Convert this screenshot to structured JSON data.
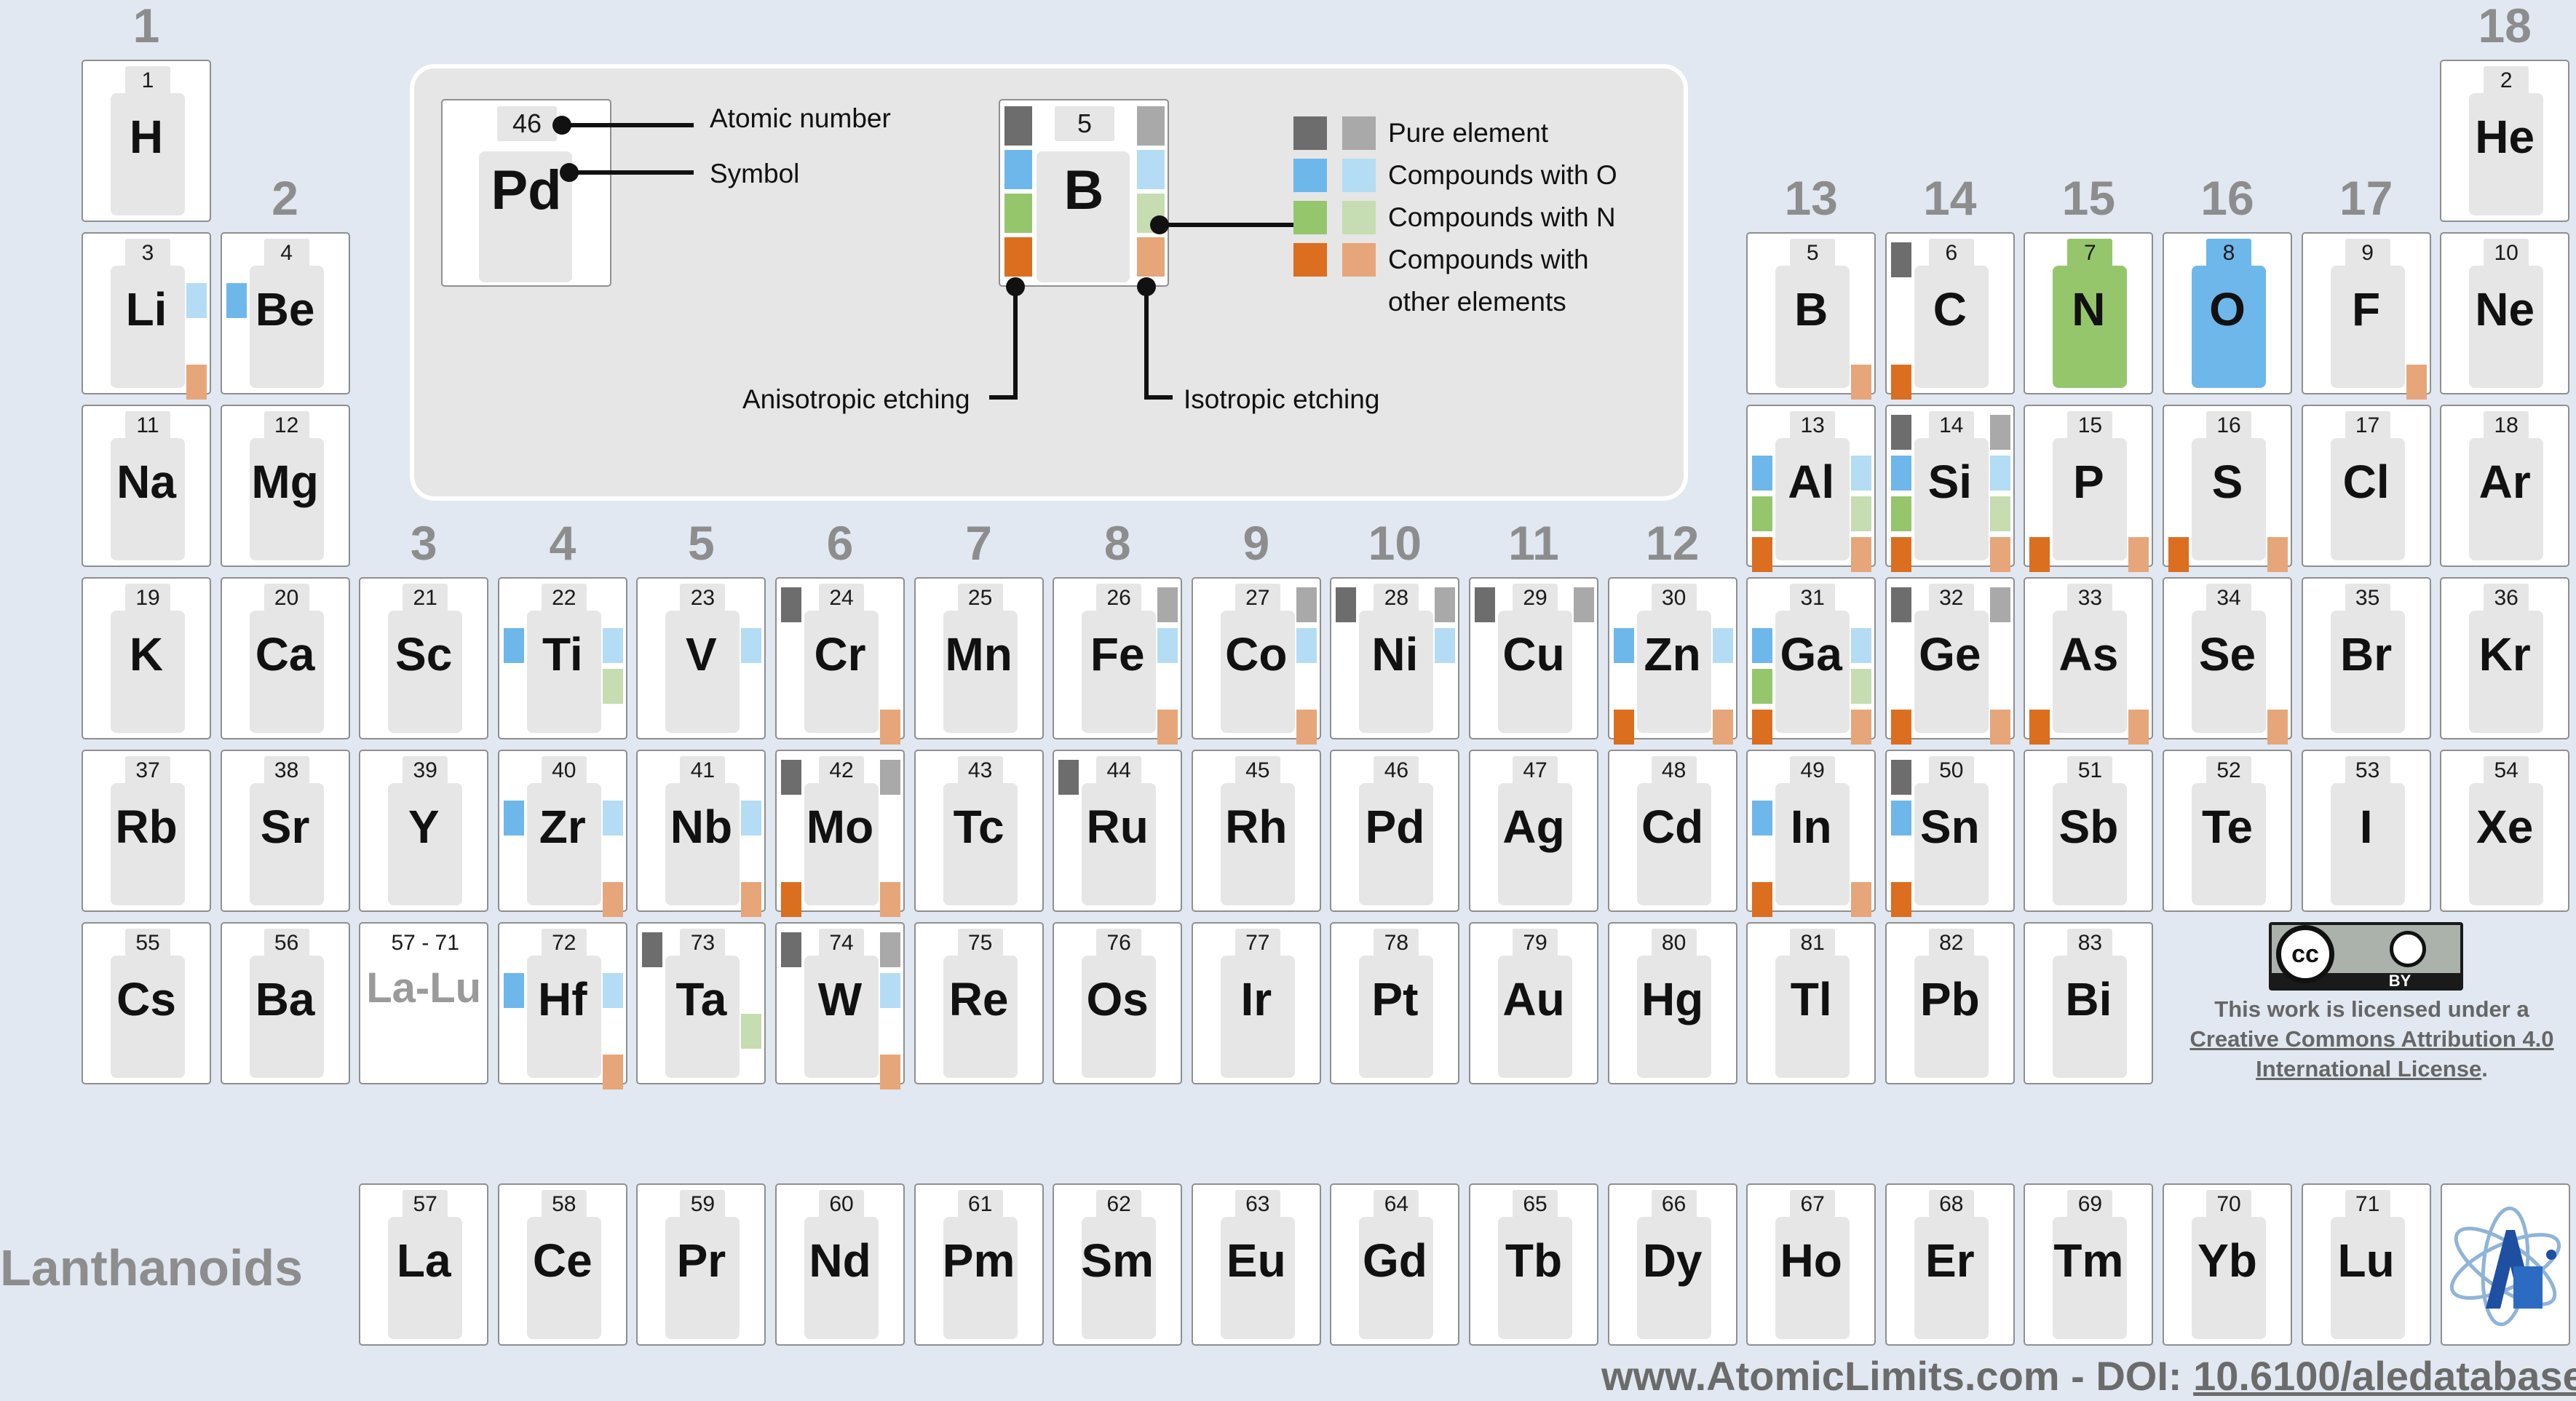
{
  "title": "",
  "colors": {
    "pure_dark": "#6d6d6d",
    "pure_light": "#a9a9a9",
    "o_dark": "#6eb7eb",
    "o_light": "#b4dcf4",
    "n_dark": "#96c66c",
    "n_light": "#c5ddb1",
    "other_dark": "#db6e1f",
    "other_light": "#e6a67a",
    "background": "#e1e8f1"
  },
  "group_labels": [
    {
      "label": "1",
      "col": 1,
      "row": 0
    },
    {
      "label": "18",
      "col": 18,
      "row": 0
    },
    {
      "label": "2",
      "col": 2,
      "row": 1
    },
    {
      "label": "13",
      "col": 13,
      "row": 1
    },
    {
      "label": "14",
      "col": 14,
      "row": 1
    },
    {
      "label": "15",
      "col": 15,
      "row": 1
    },
    {
      "label": "16",
      "col": 16,
      "row": 1
    },
    {
      "label": "17",
      "col": 17,
      "row": 1
    },
    {
      "label": "3",
      "col": 3,
      "row": 3
    },
    {
      "label": "4",
      "col": 4,
      "row": 3
    },
    {
      "label": "5",
      "col": 5,
      "row": 3
    },
    {
      "label": "6",
      "col": 6,
      "row": 3
    },
    {
      "label": "7",
      "col": 7,
      "row": 3
    },
    {
      "label": "8",
      "col": 8,
      "row": 3
    },
    {
      "label": "9",
      "col": 9,
      "row": 3
    },
    {
      "label": "10",
      "col": 10,
      "row": 3
    },
    {
      "label": "11",
      "col": 11,
      "row": 3
    },
    {
      "label": "12",
      "col": 12,
      "row": 3
    }
  ],
  "legend": {
    "example_number": "46",
    "example_symbol": "Pd",
    "atomic_number_label": "Atomic number",
    "symbol_label": "Symbol",
    "example2_number": "5",
    "example2_symbol": "B",
    "anisotropic_label": "Anisotropic etching",
    "isotropic_label": "Isotropic etching",
    "items": [
      {
        "label": "Pure element",
        "dark": "#6d6d6d",
        "light": "#a9a9a9"
      },
      {
        "label": "Compounds with O",
        "dark": "#6eb7eb",
        "light": "#b4dcf4"
      },
      {
        "label": "Compounds with N",
        "dark": "#96c66c",
        "light": "#c5ddb1"
      },
      {
        "label": "Compounds with",
        "dark": "#db6e1f",
        "light": "#e6a67a"
      }
    ],
    "last_item_line2": "other elements"
  },
  "license": {
    "cc_label": "cc",
    "by_label": "BY",
    "text": "This work is licensed under a ",
    "link": "Creative Commons Attribution 4.0 International License",
    "suffix": "."
  },
  "footer": {
    "site": "www.AtomicLimits.com - DOI: ",
    "doi": "10.6100/aledatabase"
  },
  "lanthanoids_label": "Lanthanoids",
  "chart_data": {
    "type": "table",
    "marker_key": {
      "a": "anisotropic etching (left column)",
      "i": "isotropic etching (right column)",
      "pure": "Pure element",
      "o": "Compounds with O",
      "n": "Compounds with N",
      "other": "Compounds with other elements"
    },
    "elements": [
      {
        "z": "1",
        "sym": "H",
        "col": 1,
        "row": 0,
        "a": [],
        "i": []
      },
      {
        "z": "2",
        "sym": "He",
        "col": 18,
        "row": 0,
        "a": [],
        "i": []
      },
      {
        "z": "3",
        "sym": "Li",
        "col": 1,
        "row": 1,
        "a": [],
        "i": [
          "o",
          "other"
        ]
      },
      {
        "z": "4",
        "sym": "Be",
        "col": 2,
        "row": 1,
        "a": [
          "o"
        ],
        "i": []
      },
      {
        "z": "5",
        "sym": "B",
        "col": 13,
        "row": 1,
        "a": [],
        "i": [
          "other"
        ]
      },
      {
        "z": "6",
        "sym": "C",
        "col": 14,
        "row": 1,
        "a": [
          "pure",
          "other"
        ],
        "i": []
      },
      {
        "z": "7",
        "sym": "N",
        "col": 15,
        "row": 1,
        "a": [],
        "i": [],
        "highlight": "#96c66c"
      },
      {
        "z": "8",
        "sym": "O",
        "col": 16,
        "row": 1,
        "a": [],
        "i": [],
        "highlight": "#6eb7eb"
      },
      {
        "z": "9",
        "sym": "F",
        "col": 17,
        "row": 1,
        "a": [],
        "i": [
          "other"
        ]
      },
      {
        "z": "10",
        "sym": "Ne",
        "col": 18,
        "row": 1,
        "a": [],
        "i": []
      },
      {
        "z": "11",
        "sym": "Na",
        "col": 1,
        "row": 2,
        "a": [],
        "i": []
      },
      {
        "z": "12",
        "sym": "Mg",
        "col": 2,
        "row": 2,
        "a": [],
        "i": []
      },
      {
        "z": "13",
        "sym": "Al",
        "col": 13,
        "row": 2,
        "a": [
          "o",
          "n",
          "other"
        ],
        "i": [
          "o",
          "n",
          "other"
        ]
      },
      {
        "z": "14",
        "sym": "Si",
        "col": 14,
        "row": 2,
        "a": [
          "pure",
          "o",
          "n",
          "other"
        ],
        "i": [
          "pure",
          "o",
          "n",
          "other"
        ]
      },
      {
        "z": "15",
        "sym": "P",
        "col": 15,
        "row": 2,
        "a": [
          "other"
        ],
        "i": [
          "other"
        ]
      },
      {
        "z": "16",
        "sym": "S",
        "col": 16,
        "row": 2,
        "a": [
          "other"
        ],
        "i": [
          "other"
        ]
      },
      {
        "z": "17",
        "sym": "Cl",
        "col": 17,
        "row": 2,
        "a": [],
        "i": []
      },
      {
        "z": "18",
        "sym": "Ar",
        "col": 18,
        "row": 2,
        "a": [],
        "i": []
      },
      {
        "z": "19",
        "sym": "K",
        "col": 1,
        "row": 3,
        "a": [],
        "i": []
      },
      {
        "z": "20",
        "sym": "Ca",
        "col": 2,
        "row": 3,
        "a": [],
        "i": []
      },
      {
        "z": "21",
        "sym": "Sc",
        "col": 3,
        "row": 3,
        "a": [],
        "i": []
      },
      {
        "z": "22",
        "sym": "Ti",
        "col": 4,
        "row": 3,
        "a": [
          "o"
        ],
        "i": [
          "o",
          "n"
        ]
      },
      {
        "z": "23",
        "sym": "V",
        "col": 5,
        "row": 3,
        "a": [],
        "i": [
          "o"
        ]
      },
      {
        "z": "24",
        "sym": "Cr",
        "col": 6,
        "row": 3,
        "a": [
          "pure"
        ],
        "i": [
          "other"
        ]
      },
      {
        "z": "25",
        "sym": "Mn",
        "col": 7,
        "row": 3,
        "a": [],
        "i": []
      },
      {
        "z": "26",
        "sym": "Fe",
        "col": 8,
        "row": 3,
        "a": [],
        "i": [
          "pure",
          "o",
          "other"
        ]
      },
      {
        "z": "27",
        "sym": "Co",
        "col": 9,
        "row": 3,
        "a": [],
        "i": [
          "pure",
          "o",
          "other"
        ]
      },
      {
        "z": "28",
        "sym": "Ni",
        "col": 10,
        "row": 3,
        "a": [
          "pure"
        ],
        "i": [
          "pure",
          "o"
        ]
      },
      {
        "z": "29",
        "sym": "Cu",
        "col": 11,
        "row": 3,
        "a": [
          "pure"
        ],
        "i": [
          "pure"
        ]
      },
      {
        "z": "30",
        "sym": "Zn",
        "col": 12,
        "row": 3,
        "a": [
          "o",
          "other"
        ],
        "i": [
          "o",
          "other"
        ]
      },
      {
        "z": "31",
        "sym": "Ga",
        "col": 13,
        "row": 3,
        "a": [
          "o",
          "n",
          "other"
        ],
        "i": [
          "o",
          "n",
          "other"
        ]
      },
      {
        "z": "32",
        "sym": "Ge",
        "col": 14,
        "row": 3,
        "a": [
          "pure",
          "other"
        ],
        "i": [
          "pure",
          "other"
        ]
      },
      {
        "z": "33",
        "sym": "As",
        "col": 15,
        "row": 3,
        "a": [
          "other"
        ],
        "i": [
          "other"
        ]
      },
      {
        "z": "34",
        "sym": "Se",
        "col": 16,
        "row": 3,
        "a": [],
        "i": [
          "other"
        ]
      },
      {
        "z": "35",
        "sym": "Br",
        "col": 17,
        "row": 3,
        "a": [],
        "i": []
      },
      {
        "z": "36",
        "sym": "Kr",
        "col": 18,
        "row": 3,
        "a": [],
        "i": []
      },
      {
        "z": "37",
        "sym": "Rb",
        "col": 1,
        "row": 4,
        "a": [],
        "i": []
      },
      {
        "z": "38",
        "sym": "Sr",
        "col": 2,
        "row": 4,
        "a": [],
        "i": []
      },
      {
        "z": "39",
        "sym": "Y",
        "col": 3,
        "row": 4,
        "a": [],
        "i": []
      },
      {
        "z": "40",
        "sym": "Zr",
        "col": 4,
        "row": 4,
        "a": [
          "o"
        ],
        "i": [
          "o",
          "other"
        ]
      },
      {
        "z": "41",
        "sym": "Nb",
        "col": 5,
        "row": 4,
        "a": [],
        "i": [
          "o",
          "other"
        ]
      },
      {
        "z": "42",
        "sym": "Mo",
        "col": 6,
        "row": 4,
        "a": [
          "pure",
          "other"
        ],
        "i": [
          "pure",
          "other"
        ]
      },
      {
        "z": "43",
        "sym": "Tc",
        "col": 7,
        "row": 4,
        "a": [],
        "i": []
      },
      {
        "z": "44",
        "sym": "Ru",
        "col": 8,
        "row": 4,
        "a": [
          "pure"
        ],
        "i": []
      },
      {
        "z": "45",
        "sym": "Rh",
        "col": 9,
        "row": 4,
        "a": [],
        "i": []
      },
      {
        "z": "46",
        "sym": "Pd",
        "col": 10,
        "row": 4,
        "a": [],
        "i": []
      },
      {
        "z": "47",
        "sym": "Ag",
        "col": 11,
        "row": 4,
        "a": [],
        "i": []
      },
      {
        "z": "48",
        "sym": "Cd",
        "col": 12,
        "row": 4,
        "a": [],
        "i": []
      },
      {
        "z": "49",
        "sym": "In",
        "col": 13,
        "row": 4,
        "a": [
          "o",
          "other"
        ],
        "i": [
          "other"
        ]
      },
      {
        "z": "50",
        "sym": "Sn",
        "col": 14,
        "row": 4,
        "a": [
          "pure",
          "o",
          "other"
        ],
        "i": []
      },
      {
        "z": "51",
        "sym": "Sb",
        "col": 15,
        "row": 4,
        "a": [],
        "i": []
      },
      {
        "z": "52",
        "sym": "Te",
        "col": 16,
        "row": 4,
        "a": [],
        "i": []
      },
      {
        "z": "53",
        "sym": "I",
        "col": 17,
        "row": 4,
        "a": [],
        "i": []
      },
      {
        "z": "54",
        "sym": "Xe",
        "col": 18,
        "row": 4,
        "a": [],
        "i": []
      },
      {
        "z": "55",
        "sym": "Cs",
        "col": 1,
        "row": 5,
        "a": [],
        "i": []
      },
      {
        "z": "56",
        "sym": "Ba",
        "col": 2,
        "row": 5,
        "a": [],
        "i": []
      },
      {
        "z": "57 - 71",
        "sym": "La-Lu",
        "col": 3,
        "row": 5,
        "a": [],
        "i": [],
        "special": true
      },
      {
        "z": "72",
        "sym": "Hf",
        "col": 4,
        "row": 5,
        "a": [
          "o"
        ],
        "i": [
          "o",
          "other"
        ]
      },
      {
        "z": "73",
        "sym": "Ta",
        "col": 5,
        "row": 5,
        "a": [
          "pure"
        ],
        "i": [
          "n"
        ]
      },
      {
        "z": "74",
        "sym": "W",
        "col": 6,
        "row": 5,
        "a": [
          "pure"
        ],
        "i": [
          "pure",
          "o",
          "other"
        ]
      },
      {
        "z": "75",
        "sym": "Re",
        "col": 7,
        "row": 5,
        "a": [],
        "i": []
      },
      {
        "z": "76",
        "sym": "Os",
        "col": 8,
        "row": 5,
        "a": [],
        "i": []
      },
      {
        "z": "77",
        "sym": "Ir",
        "col": 9,
        "row": 5,
        "a": [],
        "i": []
      },
      {
        "z": "78",
        "sym": "Pt",
        "col": 10,
        "row": 5,
        "a": [],
        "i": []
      },
      {
        "z": "79",
        "sym": "Au",
        "col": 11,
        "row": 5,
        "a": [],
        "i": []
      },
      {
        "z": "80",
        "sym": "Hg",
        "col": 12,
        "row": 5,
        "a": [],
        "i": []
      },
      {
        "z": "81",
        "sym": "Tl",
        "col": 13,
        "row": 5,
        "a": [],
        "i": []
      },
      {
        "z": "82",
        "sym": "Pb",
        "col": 14,
        "row": 5,
        "a": [],
        "i": []
      },
      {
        "z": "83",
        "sym": "Bi",
        "col": 15,
        "row": 5,
        "a": [],
        "i": []
      },
      {
        "z": "57",
        "sym": "La",
        "col": 3,
        "row": 6,
        "a": [],
        "i": []
      },
      {
        "z": "58",
        "sym": "Ce",
        "col": 4,
        "row": 6,
        "a": [],
        "i": []
      },
      {
        "z": "59",
        "sym": "Pr",
        "col": 5,
        "row": 6,
        "a": [],
        "i": []
      },
      {
        "z": "60",
        "sym": "Nd",
        "col": 6,
        "row": 6,
        "a": [],
        "i": []
      },
      {
        "z": "61",
        "sym": "Pm",
        "col": 7,
        "row": 6,
        "a": [],
        "i": []
      },
      {
        "z": "62",
        "sym": "Sm",
        "col": 8,
        "row": 6,
        "a": [],
        "i": []
      },
      {
        "z": "63",
        "sym": "Eu",
        "col": 9,
        "row": 6,
        "a": [],
        "i": []
      },
      {
        "z": "64",
        "sym": "Gd",
        "col": 10,
        "row": 6,
        "a": [],
        "i": []
      },
      {
        "z": "65",
        "sym": "Tb",
        "col": 11,
        "row": 6,
        "a": [],
        "i": []
      },
      {
        "z": "66",
        "sym": "Dy",
        "col": 12,
        "row": 6,
        "a": [],
        "i": []
      },
      {
        "z": "67",
        "sym": "Ho",
        "col": 13,
        "row": 6,
        "a": [],
        "i": []
      },
      {
        "z": "68",
        "sym": "Er",
        "col": 14,
        "row": 6,
        "a": [],
        "i": []
      },
      {
        "z": "69",
        "sym": "Tm",
        "col": 15,
        "row": 6,
        "a": [],
        "i": []
      },
      {
        "z": "70",
        "sym": "Yb",
        "col": 16,
        "row": 6,
        "a": [],
        "i": []
      },
      {
        "z": "71",
        "sym": "Lu",
        "col": 17,
        "row": 6,
        "a": [],
        "i": []
      }
    ]
  }
}
